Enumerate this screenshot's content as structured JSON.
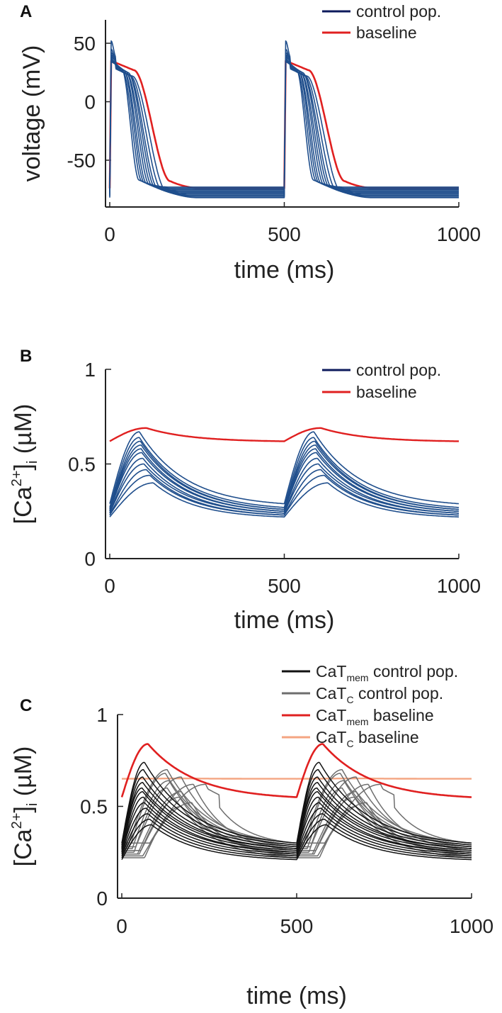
{
  "colors": {
    "control_blue": "#1f4e8c",
    "baseline_red": "#e02020",
    "mem_black": "#111111",
    "c_gray": "#6e6e6e",
    "c_baseline_orange": "#f4a582",
    "legend_navy": "#0d1a5c"
  },
  "chart_data": [
    {
      "panel": "A",
      "type": "line",
      "xlabel": "time (ms)",
      "ylabel": "voltage (mV)",
      "xlim": [
        0,
        1000
      ],
      "ylim": [
        -90,
        70
      ],
      "xticks": [
        {
          "value": 0,
          "label": "0"
        },
        {
          "value": 500,
          "label": "500"
        },
        {
          "value": 1000,
          "label": "1000"
        }
      ],
      "yticks": [
        {
          "value": 50,
          "label": "50"
        },
        {
          "value": 0,
          "label": "0"
        },
        {
          "value": -50,
          "label": "-50"
        }
      ],
      "legend": [
        {
          "label": "control pop.",
          "color": "#0d1a5c"
        },
        {
          "label": "baseline",
          "color": "#e02020"
        }
      ],
      "period_ms": 500,
      "series": [
        {
          "name": "baseline",
          "role": "ap_baseline",
          "rest": -74,
          "peak": 35,
          "apd": 170,
          "overshoot": 0
        },
        {
          "name": "control pop. 1",
          "role": "ap_control",
          "rest": -73,
          "peak": 36,
          "apd": 80,
          "overshoot": 52
        },
        {
          "name": "control pop. 2",
          "role": "ap_control",
          "rest": -74,
          "peak": 34,
          "apd": 88,
          "overshoot": 45
        },
        {
          "name": "control pop. 3",
          "role": "ap_control",
          "rest": -75,
          "peak": 35,
          "apd": 95,
          "overshoot": 40
        },
        {
          "name": "control pop. 4",
          "role": "ap_control",
          "rest": -76,
          "peak": 33,
          "apd": 102,
          "overshoot": 38
        },
        {
          "name": "control pop. 5",
          "role": "ap_control",
          "rest": -77,
          "peak": 34,
          "apd": 110,
          "overshoot": 42
        },
        {
          "name": "control pop. 6",
          "role": "ap_control",
          "rest": -78,
          "peak": 32,
          "apd": 118,
          "overshoot": 36
        },
        {
          "name": "control pop. 7",
          "role": "ap_control",
          "rest": -79,
          "peak": 33,
          "apd": 126,
          "overshoot": 39
        },
        {
          "name": "control pop. 8",
          "role": "ap_control",
          "rest": -80,
          "peak": 31,
          "apd": 134,
          "overshoot": 35
        },
        {
          "name": "control pop. 9",
          "role": "ap_control",
          "rest": -81,
          "peak": 30,
          "apd": 145,
          "overshoot": 37
        },
        {
          "name": "control pop. 10",
          "role": "ap_control",
          "rest": -82,
          "peak": 30,
          "apd": 158,
          "overshoot": 34
        }
      ]
    },
    {
      "panel": "B",
      "type": "line",
      "xlabel": "time (ms)",
      "ylabel": "[Ca2+]i (µM)",
      "ylabel_parts": {
        "prefix": "[Ca",
        "sup": "2+",
        "mid": "]",
        "sub": "i",
        "suffix": " (µM)"
      },
      "xlim": [
        0,
        1000
      ],
      "ylim": [
        0,
        1
      ],
      "xticks": [
        {
          "value": 0,
          "label": "0"
        },
        {
          "value": 500,
          "label": "500"
        },
        {
          "value": 1000,
          "label": "1000"
        }
      ],
      "yticks": [
        {
          "value": 1,
          "label": "1"
        },
        {
          "value": 0.5,
          "label": "0.5"
        },
        {
          "value": 0,
          "label": "0"
        }
      ],
      "legend": [
        {
          "label": "control pop.",
          "color": "#0d1a5c"
        },
        {
          "label": "baseline",
          "color": "#e02020"
        }
      ],
      "period_ms": 500,
      "series": [
        {
          "name": "baseline",
          "role": "ca_baseline",
          "start": 0.62,
          "end": 0.62,
          "peak": 0.69,
          "t_peak": 105,
          "delay": 0
        },
        {
          "name": "control pop. 1",
          "role": "ca_control",
          "start": 0.29,
          "end": 0.29,
          "peak": 0.67,
          "t_peak": 85,
          "delay": 0
        },
        {
          "name": "control pop. 2",
          "role": "ca_control",
          "start": 0.27,
          "end": 0.27,
          "peak": 0.64,
          "t_peak": 85,
          "delay": 0
        },
        {
          "name": "control pop. 3",
          "role": "ca_control",
          "start": 0.26,
          "end": 0.26,
          "peak": 0.62,
          "t_peak": 88,
          "delay": 0
        },
        {
          "name": "control pop. 4",
          "role": "ca_control",
          "start": 0.26,
          "end": 0.26,
          "peak": 0.6,
          "t_peak": 90,
          "delay": 0
        },
        {
          "name": "control pop. 5",
          "role": "ca_control",
          "start": 0.25,
          "end": 0.25,
          "peak": 0.58,
          "t_peak": 90,
          "delay": 0
        },
        {
          "name": "control pop. 6",
          "role": "ca_control",
          "start": 0.25,
          "end": 0.25,
          "peak": 0.56,
          "t_peak": 92,
          "delay": 0
        },
        {
          "name": "control pop. 7",
          "role": "ca_control",
          "start": 0.24,
          "end": 0.24,
          "peak": 0.53,
          "t_peak": 95,
          "delay": 0
        },
        {
          "name": "control pop. 8",
          "role": "ca_control",
          "start": 0.24,
          "end": 0.24,
          "peak": 0.5,
          "t_peak": 98,
          "delay": 0
        },
        {
          "name": "control pop. 9",
          "role": "ca_control",
          "start": 0.23,
          "end": 0.23,
          "peak": 0.47,
          "t_peak": 105,
          "delay": 0
        },
        {
          "name": "control pop. 10",
          "role": "ca_control",
          "start": 0.23,
          "end": 0.23,
          "peak": 0.44,
          "t_peak": 115,
          "delay": 0
        },
        {
          "name": "control pop. 11",
          "role": "ca_control",
          "start": 0.22,
          "end": 0.22,
          "peak": 0.4,
          "t_peak": 125,
          "delay": 0
        }
      ]
    },
    {
      "panel": "C",
      "type": "line",
      "xlabel": "time (ms)",
      "ylabel": "[Ca2+]i (µM)",
      "ylabel_parts": {
        "prefix": "[Ca",
        "sup": "2+",
        "mid": "]",
        "sub": "i",
        "suffix": " (µM)"
      },
      "xlim": [
        0,
        1000
      ],
      "ylim": [
        0,
        1
      ],
      "xticks": [
        {
          "value": 0,
          "label": "0"
        },
        {
          "value": 500,
          "label": "500"
        },
        {
          "value": 1000,
          "label": "1000"
        }
      ],
      "yticks": [
        {
          "value": 1,
          "label": "1"
        },
        {
          "value": 0.5,
          "label": "0.5"
        },
        {
          "value": 0,
          "label": "0"
        }
      ],
      "legend": [
        {
          "label": "CaTmem control pop.",
          "main": "CaT",
          "sub": "mem",
          "rest": " control pop.",
          "color": "#111111"
        },
        {
          "label": "CaTC control pop.",
          "main": "CaT",
          "sub": "C",
          "rest": " control pop.",
          "color": "#6e6e6e"
        },
        {
          "label": "CaTmem baseline",
          "main": "CaT",
          "sub": "mem",
          "rest": " baseline",
          "color": "#e02020"
        },
        {
          "label": "CaTC baseline",
          "main": "CaT",
          "sub": "C",
          "rest": " baseline",
          "color": "#f4a582"
        }
      ],
      "period_ms": 500,
      "series": [
        {
          "name": "CaTC baseline",
          "role": "c_baseline",
          "start": 0.65,
          "end": 0.65,
          "peak": 0.652,
          "t_peak": 200,
          "delay": 0
        },
        {
          "name": "CaTmem baseline",
          "role": "mem_baseline",
          "start": 0.55,
          "end": 0.55,
          "peak": 0.84,
          "t_peak": 75,
          "delay": 0
        },
        {
          "name": "CaTC control pop. 1",
          "role": "c_control",
          "start": 0.3,
          "end": 0.3,
          "peak": 0.7,
          "t_peak": 110,
          "delay": 20
        },
        {
          "name": "CaTC control pop. 2",
          "role": "c_control",
          "start": 0.29,
          "end": 0.29,
          "peak": 0.68,
          "t_peak": 100,
          "delay": 25
        },
        {
          "name": "CaTC control pop. 3",
          "role": "c_control",
          "start": 0.28,
          "end": 0.28,
          "peak": 0.66,
          "t_peak": 130,
          "delay": 40
        },
        {
          "name": "CaTC control pop. 4",
          "role": "c_control",
          "start": 0.27,
          "end": 0.27,
          "peak": 0.64,
          "t_peak": 105,
          "delay": 30
        },
        {
          "name": "CaTC control pop. 5",
          "role": "c_control",
          "start": 0.26,
          "end": 0.26,
          "peak": 0.62,
          "t_peak": 150,
          "delay": 55
        },
        {
          "name": "CaTC control pop. 6",
          "role": "c_control",
          "start": 0.25,
          "end": 0.25,
          "peak": 0.6,
          "t_peak": 95,
          "delay": 35
        },
        {
          "name": "CaTC control pop. 7",
          "role": "c_control",
          "start": 0.24,
          "end": 0.24,
          "peak": 0.58,
          "t_peak": 125,
          "delay": 45
        },
        {
          "name": "CaTC control pop. 8",
          "role": "c_control",
          "start": 0.24,
          "end": 0.24,
          "peak": 0.55,
          "t_peak": 115,
          "delay": 50
        },
        {
          "name": "CaTC control pop. 9",
          "role": "c_control",
          "start": 0.23,
          "end": 0.23,
          "peak": 0.52,
          "t_peak": 140,
          "delay": 60
        },
        {
          "name": "CaTC control pop. 10",
          "role": "c_control",
          "start": 0.22,
          "end": 0.22,
          "peak": 0.5,
          "t_peak": 105,
          "delay": 65
        },
        {
          "name": "CaTC control pop. 11",
          "role": "c_control",
          "start": 0.3,
          "end": 0.3,
          "peak": 0.62,
          "t_peak": 160,
          "delay": 80,
          "plateau": 0.6,
          "plateau_end": 200
        },
        {
          "name": "CaTmem control pop. 1",
          "role": "mem_control",
          "start": 0.3,
          "end": 0.3,
          "peak": 0.74,
          "t_peak": 65,
          "delay": 0
        },
        {
          "name": "CaTmem control pop. 2",
          "role": "mem_control",
          "start": 0.29,
          "end": 0.29,
          "peak": 0.7,
          "t_peak": 62,
          "delay": 0
        },
        {
          "name": "CaTmem control pop. 3",
          "role": "mem_control",
          "start": 0.28,
          "end": 0.28,
          "peak": 0.66,
          "t_peak": 60,
          "delay": 0
        },
        {
          "name": "CaTmem control pop. 4",
          "role": "mem_control",
          "start": 0.27,
          "end": 0.27,
          "peak": 0.63,
          "t_peak": 60,
          "delay": 0
        },
        {
          "name": "CaTmem control pop. 5",
          "role": "mem_control",
          "start": 0.27,
          "end": 0.27,
          "peak": 0.6,
          "t_peak": 58,
          "delay": 0
        },
        {
          "name": "CaTmem control pop. 6",
          "role": "mem_control",
          "start": 0.26,
          "end": 0.26,
          "peak": 0.58,
          "t_peak": 60,
          "delay": 0
        },
        {
          "name": "CaTmem control pop. 7",
          "role": "mem_control",
          "start": 0.25,
          "end": 0.25,
          "peak": 0.55,
          "t_peak": 62,
          "delay": 0
        },
        {
          "name": "CaTmem control pop. 8",
          "role": "mem_control",
          "start": 0.25,
          "end": 0.25,
          "peak": 0.52,
          "t_peak": 65,
          "delay": 0
        },
        {
          "name": "CaTmem control pop. 9",
          "role": "mem_control",
          "start": 0.24,
          "end": 0.24,
          "peak": 0.49,
          "t_peak": 70,
          "delay": 0
        },
        {
          "name": "CaTmem control pop. 10",
          "role": "mem_control",
          "start": 0.23,
          "end": 0.23,
          "peak": 0.46,
          "t_peak": 75,
          "delay": 0
        },
        {
          "name": "CaTmem control pop. 11",
          "role": "mem_control",
          "start": 0.22,
          "end": 0.22,
          "peak": 0.43,
          "t_peak": 80,
          "delay": 0
        },
        {
          "name": "CaTmem control pop. 12",
          "role": "mem_control",
          "start": 0.21,
          "end": 0.21,
          "peak": 0.4,
          "t_peak": 85,
          "delay": 0
        }
      ]
    }
  ]
}
